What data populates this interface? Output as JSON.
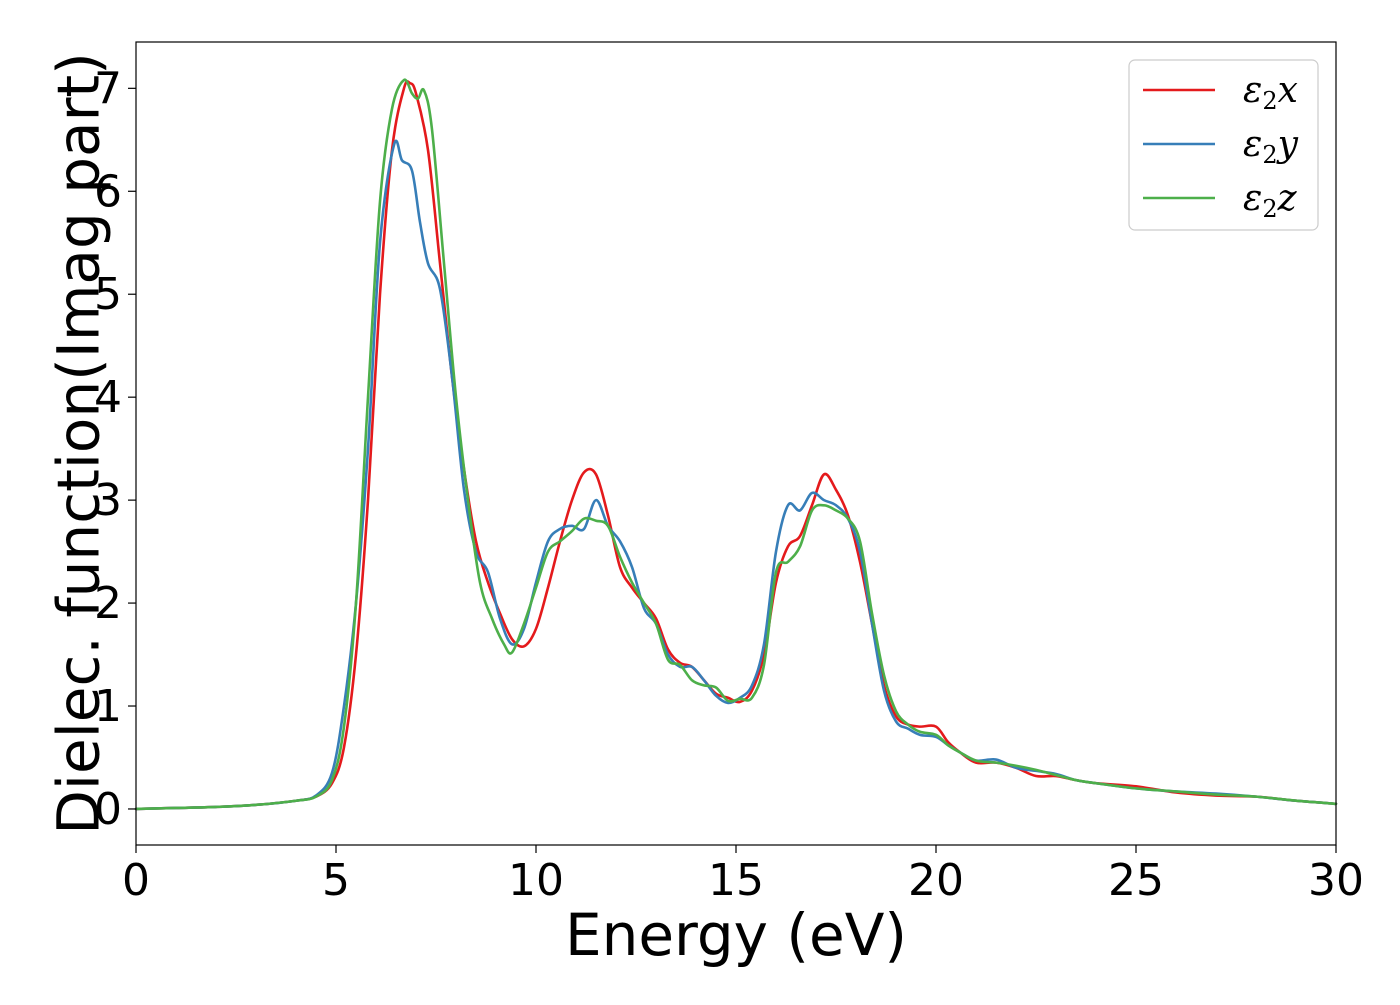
{
  "chart_data": {
    "type": "line",
    "xlabel": "Energy (eV)",
    "ylabel": "Dielec. function(Imag part)",
    "xlim": [
      0,
      30
    ],
    "ylim": [
      -0.35,
      7.45
    ],
    "x_ticks": [
      "0",
      "5",
      "10",
      "15",
      "20",
      "25",
      "30"
    ],
    "y_ticks": [
      "0",
      "1",
      "2",
      "3",
      "4",
      "5",
      "6",
      "7"
    ],
    "grid": false,
    "legend_position": "top-right",
    "series": [
      {
        "name": "ε₂x",
        "legend_base": "ε",
        "legend_sub": "2",
        "legend_var": "x",
        "color": "#e41a1c",
        "points": [
          [
            0,
            0.0
          ],
          [
            1,
            0.01
          ],
          [
            2,
            0.02
          ],
          [
            3,
            0.04
          ],
          [
            4,
            0.08
          ],
          [
            4.5,
            0.12
          ],
          [
            4.9,
            0.25
          ],
          [
            5.2,
            0.6
          ],
          [
            5.5,
            1.5
          ],
          [
            5.8,
            3.0
          ],
          [
            6.1,
            5.0
          ],
          [
            6.4,
            6.4
          ],
          [
            6.7,
            7.0
          ],
          [
            6.85,
            7.05
          ],
          [
            7.0,
            6.95
          ],
          [
            7.3,
            6.4
          ],
          [
            7.6,
            5.3
          ],
          [
            7.9,
            4.2
          ],
          [
            8.2,
            3.3
          ],
          [
            8.5,
            2.6
          ],
          [
            8.8,
            2.2
          ],
          [
            9.1,
            1.9
          ],
          [
            9.4,
            1.65
          ],
          [
            9.7,
            1.58
          ],
          [
            10.0,
            1.75
          ],
          [
            10.3,
            2.15
          ],
          [
            10.6,
            2.6
          ],
          [
            10.9,
            3.0
          ],
          [
            11.2,
            3.27
          ],
          [
            11.5,
            3.25
          ],
          [
            11.8,
            2.85
          ],
          [
            12.1,
            2.35
          ],
          [
            12.4,
            2.15
          ],
          [
            12.7,
            2.0
          ],
          [
            13.0,
            1.85
          ],
          [
            13.3,
            1.55
          ],
          [
            13.6,
            1.42
          ],
          [
            13.9,
            1.38
          ],
          [
            14.2,
            1.25
          ],
          [
            14.5,
            1.12
          ],
          [
            14.8,
            1.08
          ],
          [
            15.1,
            1.04
          ],
          [
            15.4,
            1.15
          ],
          [
            15.7,
            1.5
          ],
          [
            16.0,
            2.2
          ],
          [
            16.3,
            2.55
          ],
          [
            16.6,
            2.65
          ],
          [
            16.9,
            2.95
          ],
          [
            17.2,
            3.25
          ],
          [
            17.5,
            3.1
          ],
          [
            17.8,
            2.85
          ],
          [
            18.1,
            2.4
          ],
          [
            18.4,
            1.8
          ],
          [
            18.7,
            1.2
          ],
          [
            19.0,
            0.9
          ],
          [
            19.3,
            0.82
          ],
          [
            19.6,
            0.8
          ],
          [
            20.0,
            0.8
          ],
          [
            20.3,
            0.65
          ],
          [
            20.6,
            0.55
          ],
          [
            21.0,
            0.45
          ],
          [
            21.5,
            0.45
          ],
          [
            22.0,
            0.4
          ],
          [
            22.5,
            0.32
          ],
          [
            23.0,
            0.32
          ],
          [
            23.5,
            0.28
          ],
          [
            24.0,
            0.25
          ],
          [
            25.0,
            0.22
          ],
          [
            26.0,
            0.16
          ],
          [
            27.0,
            0.13
          ],
          [
            28.0,
            0.12
          ],
          [
            29.0,
            0.08
          ],
          [
            30.0,
            0.05
          ]
        ]
      },
      {
        "name": "ε₂y",
        "legend_base": "ε",
        "legend_sub": "2",
        "legend_var": "y",
        "color": "#377eb8",
        "points": [
          [
            0,
            0.0
          ],
          [
            1,
            0.01
          ],
          [
            2,
            0.02
          ],
          [
            3,
            0.04
          ],
          [
            4,
            0.08
          ],
          [
            4.5,
            0.13
          ],
          [
            4.9,
            0.35
          ],
          [
            5.2,
            1.0
          ],
          [
            5.5,
            2.0
          ],
          [
            5.8,
            3.5
          ],
          [
            6.1,
            5.5
          ],
          [
            6.45,
            6.45
          ],
          [
            6.65,
            6.3
          ],
          [
            6.9,
            6.2
          ],
          [
            7.1,
            5.7
          ],
          [
            7.3,
            5.3
          ],
          [
            7.6,
            5.05
          ],
          [
            7.9,
            4.2
          ],
          [
            8.2,
            3.1
          ],
          [
            8.5,
            2.5
          ],
          [
            8.8,
            2.3
          ],
          [
            9.1,
            1.85
          ],
          [
            9.4,
            1.6
          ],
          [
            9.7,
            1.75
          ],
          [
            10.0,
            2.2
          ],
          [
            10.3,
            2.6
          ],
          [
            10.6,
            2.72
          ],
          [
            10.9,
            2.75
          ],
          [
            11.2,
            2.72
          ],
          [
            11.5,
            3.0
          ],
          [
            11.8,
            2.75
          ],
          [
            12.1,
            2.6
          ],
          [
            12.4,
            2.35
          ],
          [
            12.7,
            1.95
          ],
          [
            13.0,
            1.8
          ],
          [
            13.3,
            1.5
          ],
          [
            13.6,
            1.38
          ],
          [
            13.9,
            1.38
          ],
          [
            14.2,
            1.25
          ],
          [
            14.5,
            1.1
          ],
          [
            14.8,
            1.03
          ],
          [
            15.1,
            1.08
          ],
          [
            15.4,
            1.2
          ],
          [
            15.7,
            1.6
          ],
          [
            16.0,
            2.5
          ],
          [
            16.3,
            2.95
          ],
          [
            16.6,
            2.9
          ],
          [
            16.9,
            3.07
          ],
          [
            17.2,
            3.0
          ],
          [
            17.5,
            2.95
          ],
          [
            17.8,
            2.82
          ],
          [
            18.1,
            2.5
          ],
          [
            18.4,
            1.8
          ],
          [
            18.7,
            1.15
          ],
          [
            19.0,
            0.85
          ],
          [
            19.3,
            0.78
          ],
          [
            19.6,
            0.72
          ],
          [
            20.0,
            0.7
          ],
          [
            20.3,
            0.62
          ],
          [
            20.6,
            0.55
          ],
          [
            21.0,
            0.47
          ],
          [
            21.5,
            0.48
          ],
          [
            22.0,
            0.4
          ],
          [
            22.5,
            0.37
          ],
          [
            23.0,
            0.34
          ],
          [
            23.5,
            0.28
          ],
          [
            24.0,
            0.25
          ],
          [
            25.0,
            0.2
          ],
          [
            26.0,
            0.17
          ],
          [
            27.0,
            0.15
          ],
          [
            28.0,
            0.12
          ],
          [
            29.0,
            0.08
          ],
          [
            30.0,
            0.05
          ]
        ]
      },
      {
        "name": "ε₂z",
        "legend_base": "ε",
        "legend_sub": "2",
        "legend_var": "z",
        "color": "#4daf4a",
        "points": [
          [
            0,
            0.0
          ],
          [
            1,
            0.01
          ],
          [
            2,
            0.02
          ],
          [
            3,
            0.04
          ],
          [
            4,
            0.08
          ],
          [
            4.5,
            0.12
          ],
          [
            4.9,
            0.28
          ],
          [
            5.2,
            0.8
          ],
          [
            5.5,
            2.0
          ],
          [
            5.8,
            4.0
          ],
          [
            6.1,
            5.9
          ],
          [
            6.4,
            6.8
          ],
          [
            6.7,
            7.08
          ],
          [
            6.9,
            6.95
          ],
          [
            7.05,
            6.9
          ],
          [
            7.2,
            6.98
          ],
          [
            7.4,
            6.6
          ],
          [
            7.7,
            5.3
          ],
          [
            8.0,
            4.0
          ],
          [
            8.3,
            3.0
          ],
          [
            8.6,
            2.2
          ],
          [
            8.9,
            1.85
          ],
          [
            9.2,
            1.6
          ],
          [
            9.4,
            1.52
          ],
          [
            9.7,
            1.8
          ],
          [
            10.0,
            2.15
          ],
          [
            10.3,
            2.5
          ],
          [
            10.6,
            2.6
          ],
          [
            10.9,
            2.7
          ],
          [
            11.2,
            2.82
          ],
          [
            11.5,
            2.8
          ],
          [
            11.8,
            2.75
          ],
          [
            12.1,
            2.45
          ],
          [
            12.4,
            2.2
          ],
          [
            12.7,
            2.0
          ],
          [
            13.0,
            1.8
          ],
          [
            13.3,
            1.45
          ],
          [
            13.6,
            1.4
          ],
          [
            13.9,
            1.25
          ],
          [
            14.2,
            1.2
          ],
          [
            14.5,
            1.18
          ],
          [
            14.8,
            1.05
          ],
          [
            15.1,
            1.07
          ],
          [
            15.4,
            1.08
          ],
          [
            15.7,
            1.4
          ],
          [
            16.0,
            2.3
          ],
          [
            16.3,
            2.4
          ],
          [
            16.6,
            2.55
          ],
          [
            16.9,
            2.9
          ],
          [
            17.2,
            2.95
          ],
          [
            17.5,
            2.9
          ],
          [
            17.8,
            2.82
          ],
          [
            18.1,
            2.6
          ],
          [
            18.4,
            1.9
          ],
          [
            18.7,
            1.3
          ],
          [
            19.0,
            0.95
          ],
          [
            19.3,
            0.82
          ],
          [
            19.6,
            0.75
          ],
          [
            20.0,
            0.72
          ],
          [
            20.3,
            0.62
          ],
          [
            20.6,
            0.55
          ],
          [
            21.0,
            0.47
          ],
          [
            21.5,
            0.45
          ],
          [
            22.0,
            0.42
          ],
          [
            22.5,
            0.38
          ],
          [
            23.0,
            0.33
          ],
          [
            23.5,
            0.28
          ],
          [
            24.0,
            0.25
          ],
          [
            25.0,
            0.2
          ],
          [
            26.0,
            0.17
          ],
          [
            27.0,
            0.14
          ],
          [
            28.0,
            0.12
          ],
          [
            29.0,
            0.08
          ],
          [
            30.0,
            0.05
          ]
        ]
      }
    ]
  }
}
